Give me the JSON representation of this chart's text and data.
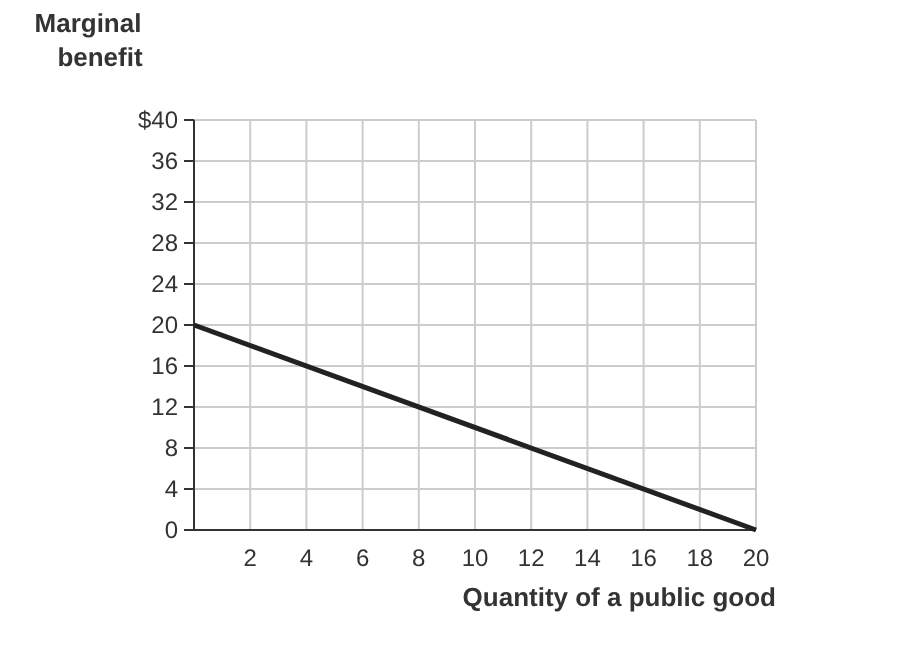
{
  "chart_data": {
    "type": "line",
    "xlabel": "Quantity of a public good",
    "ylabel": "Marginal benefit",
    "x": [
      0,
      20
    ],
    "series": [
      {
        "color": "#222222",
        "values": [
          20,
          0
        ]
      }
    ],
    "xlim": [
      0,
      20
    ],
    "xticks": [
      2,
      4,
      6,
      8,
      10,
      12,
      14,
      16,
      18,
      20
    ],
    "ylim": [
      0,
      40
    ],
    "yticks": [
      0,
      4,
      8,
      12,
      16,
      20,
      24,
      28,
      32,
      36,
      {
        "value": 40,
        "label": "$40"
      }
    ],
    "grid": true,
    "marker": "none",
    "line_style": "solid"
  }
}
